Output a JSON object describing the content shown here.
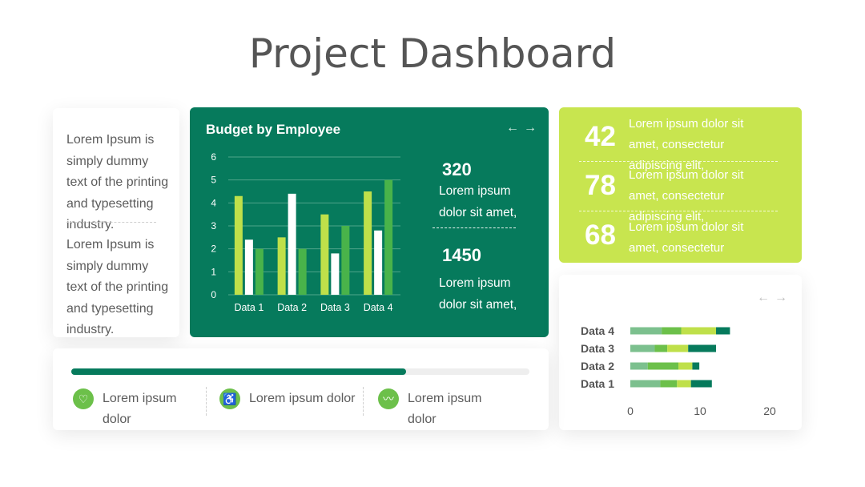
{
  "title": "Project Dashboard",
  "left_card": {
    "text1": "Lorem Ipsum is simply dummy text of the printing and typesetting industry.",
    "text2": "Lorem Ipsum is simply dummy text of the printing and typesetting industry."
  },
  "budget": {
    "title": "Budget by Employee",
    "nav_prev": "←",
    "nav_next": "→",
    "kpi1_value": "320",
    "kpi1_text": "Lorem ipsum dolor sit amet,",
    "kpi2_value": "1450",
    "kpi2_text": "Lorem ipsum dolor sit amet,"
  },
  "stats": [
    {
      "value": "42",
      "text": "Lorem ipsum dolor sit amet, consectetur adipiscing elit,"
    },
    {
      "value": "78",
      "text": "Lorem ipsum dolor sit amet, consectetur adipiscing elit,"
    },
    {
      "value": "68",
      "text": "Lorem ipsum dolor sit amet, consectetur adipiscing elit,"
    }
  ],
  "hbar_nav": {
    "prev": "←",
    "next": "→"
  },
  "progress": {
    "value": 0.73,
    "features": [
      {
        "icon": "heart-pulse-icon",
        "glyph": "♡",
        "label": "Lorem ipsum dolor"
      },
      {
        "icon": "wheelchair-icon",
        "glyph": "♿",
        "label": "Lorem ipsum dolor"
      },
      {
        "icon": "heartbeat-icon",
        "glyph": "〰",
        "label": "Lorem ipsum dolor"
      }
    ]
  },
  "colors": {
    "dark_green": "#067a5c",
    "lime": "#c8e54f",
    "green": "#6cc04a",
    "light_green": "#7cc08e",
    "bar_lime": "#bfe04a",
    "bar_white": "#ffffff",
    "bar_green": "#49b34a"
  },
  "chart_data": [
    {
      "type": "bar",
      "title": "Budget by Employee",
      "categories": [
        "Data 1",
        "Data 2",
        "Data 3",
        "Data 4"
      ],
      "series": [
        {
          "values": [
            4.3,
            2.5,
            3.5,
            4.5
          ]
        },
        {
          "values": [
            2.4,
            4.4,
            1.8,
            2.8
          ]
        },
        {
          "values": [
            2.0,
            2.0,
            3.0,
            5.0
          ]
        }
      ],
      "ylim": [
        0,
        6
      ],
      "yticks": [
        "0",
        "1",
        "2",
        "3",
        "4",
        "5",
        "6"
      ],
      "grid": true
    },
    {
      "type": "bar",
      "orientation": "horizontal",
      "stacked": true,
      "categories": [
        "Data 4",
        "Data 3",
        "Data 2",
        "Data 1"
      ],
      "series": [
        {
          "values": [
            4.5,
            3.5,
            2.5,
            4.3
          ]
        },
        {
          "values": [
            2.8,
            1.8,
            4.4,
            2.4
          ]
        },
        {
          "values": [
            5.0,
            3.0,
            2.0,
            2.0
          ]
        },
        {
          "values": [
            2.0,
            4.0,
            1.0,
            3.0
          ]
        }
      ],
      "xlim": [
        0,
        20
      ],
      "xticks": [
        "0",
        "10",
        "20"
      ]
    }
  ]
}
